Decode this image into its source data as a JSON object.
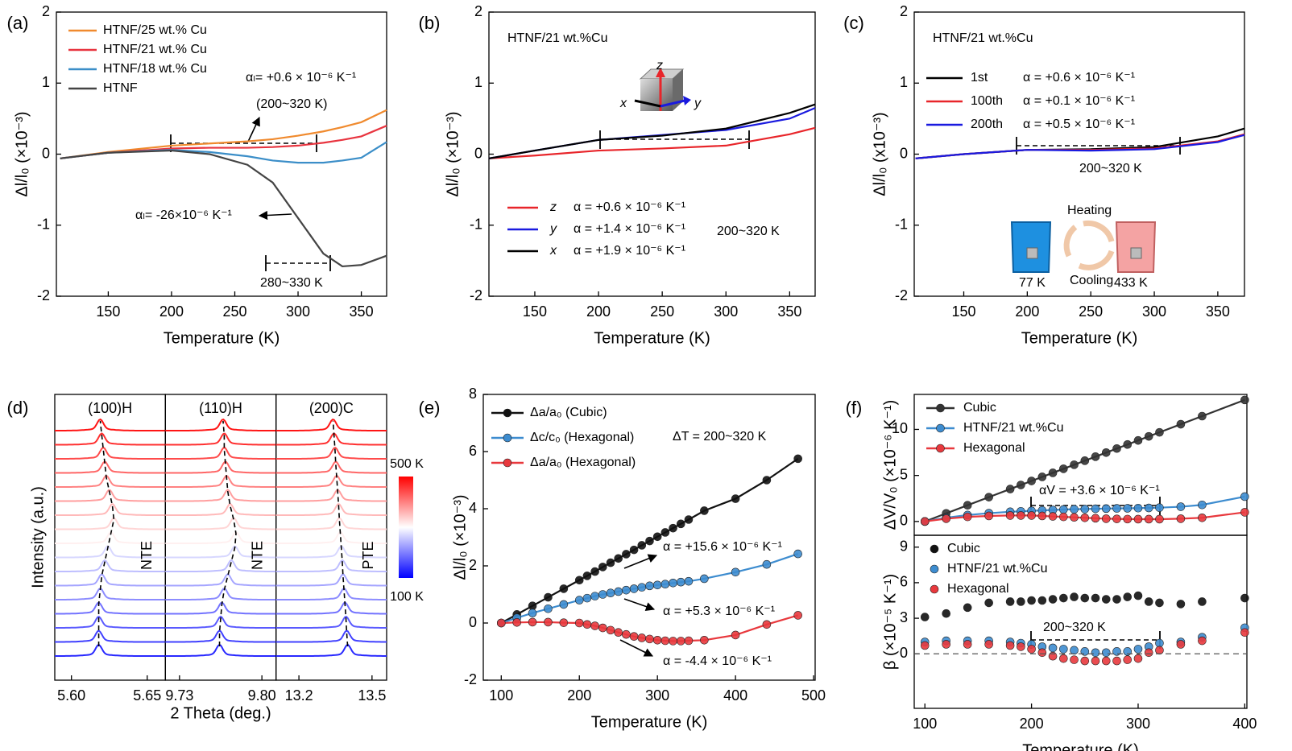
{
  "chart_data": [
    {
      "type": "line",
      "panel": "(a)",
      "xlabel": "Temperature (K)",
      "ylabel": "Δl/l₀ (×10⁻³)",
      "xlim": [
        109,
        370
      ],
      "ylim": [
        -2,
        2
      ],
      "xticks": [
        150,
        200,
        250,
        300,
        350
      ],
      "yticks": [
        -2,
        -1,
        0,
        1,
        2
      ],
      "x": [
        112,
        150,
        200,
        230,
        260,
        280,
        300,
        320,
        335,
        350,
        370
      ],
      "series": [
        {
          "name": "HTNF/25 wt.% Cu",
          "color": "#f08a2e",
          "values": [
            -0.06,
            0.03,
            0.12,
            0.15,
            0.18,
            0.21,
            0.26,
            0.32,
            0.38,
            0.45,
            0.62
          ]
        },
        {
          "name": "HTNF/21 wt.% Cu",
          "color": "#e8343f",
          "values": [
            -0.06,
            0.02,
            0.08,
            0.09,
            0.09,
            0.1,
            0.12,
            0.16,
            0.2,
            0.25,
            0.4
          ]
        },
        {
          "name": "HTNF/18 wt.% Cu",
          "color": "#3b8ec8",
          "values": [
            -0.06,
            0.02,
            0.06,
            0.03,
            -0.03,
            -0.09,
            -0.12,
            -0.12,
            -0.09,
            -0.05,
            0.17
          ]
        },
        {
          "name": "HTNF",
          "color": "#444444",
          "values": [
            -0.06,
            0.02,
            0.05,
            0.0,
            -0.15,
            -0.4,
            -0.9,
            -1.4,
            -1.58,
            -1.56,
            -1.43
          ]
        }
      ],
      "annotations": [
        "αₗ= +0.6 × 10⁻⁶ K⁻¹",
        "(200~320 K)",
        "αₗ= -26×10⁻⁶ K⁻¹",
        "280~330 K"
      ]
    },
    {
      "type": "line",
      "panel": "(b)",
      "subtitle": "HTNF/21 wt.%Cu",
      "xlabel": "Temperature (K)",
      "ylabel": "Δl/l₀ (×10⁻³)",
      "xlim": [
        114,
        370
      ],
      "ylim": [
        -2,
        2
      ],
      "xticks": [
        150,
        200,
        250,
        300,
        350
      ],
      "yticks": [
        -2,
        -1,
        0,
        1,
        2
      ],
      "x": [
        114,
        150,
        200,
        250,
        300,
        350,
        370
      ],
      "series": [
        {
          "name": "z",
          "alpha": "α = +0.6 × 10⁻⁶ K⁻¹",
          "color": "#e8252a",
          "values": [
            -0.06,
            -0.02,
            0.05,
            0.08,
            0.12,
            0.28,
            0.37
          ]
        },
        {
          "name": "y",
          "alpha": "α = +1.4 × 10⁻⁶ K⁻¹",
          "color": "#1a1adf",
          "values": [
            -0.06,
            0.05,
            0.2,
            0.27,
            0.34,
            0.5,
            0.65
          ]
        },
        {
          "name": "x",
          "alpha": "α = +1.9 × 10⁻⁶ K⁻¹",
          "color": "#000000",
          "values": [
            -0.06,
            0.05,
            0.2,
            0.26,
            0.36,
            0.58,
            0.7
          ]
        }
      ],
      "annotations": [
        "200~320 K"
      ],
      "cube_labels": [
        "z",
        "x",
        "y"
      ]
    },
    {
      "type": "line",
      "panel": "(c)",
      "subtitle": "HTNF/21 wt.%Cu",
      "xlabel": "Temperature (K)",
      "ylabel": "Δl/l₀ (x10⁻³)",
      "xlim": [
        111,
        371
      ],
      "ylim": [
        -2,
        2
      ],
      "xticks": [
        150,
        200,
        250,
        300,
        350
      ],
      "yticks": [
        -2,
        -1,
        0,
        1,
        2
      ],
      "x": [
        112,
        150,
        200,
        250,
        300,
        350,
        371
      ],
      "series": [
        {
          "name": "1st",
          "alpha": "α = +0.6 × 10⁻⁶ K⁻¹",
          "color": "#000000",
          "values": [
            -0.06,
            0.0,
            0.06,
            0.07,
            0.1,
            0.25,
            0.36
          ]
        },
        {
          "name": "100th",
          "alpha": "α = +0.1 × 10⁻⁶ K⁻¹",
          "color": "#e8252a",
          "values": [
            -0.06,
            0.0,
            0.06,
            0.06,
            0.08,
            0.18,
            0.28
          ]
        },
        {
          "name": "200th",
          "alpha": "α = +0.5 × 10⁻⁶ K⁻¹",
          "color": "#1a1adf",
          "values": [
            -0.06,
            0.0,
            0.06,
            0.05,
            0.07,
            0.17,
            0.27
          ]
        }
      ],
      "annotations": [
        "200~320 K",
        "Heating",
        "Cooling",
        "77 K",
        "433 K"
      ]
    },
    {
      "type": "spectra",
      "panel": "(d)",
      "xlabel": "2 Theta (deg.)",
      "ylabel": "Intensity (a.u.)",
      "colorbar_labels": [
        "500 K",
        "100 K"
      ],
      "panels": [
        {
          "label": "(100)H",
          "effect": "NTE",
          "xlim": [
            5.589,
            5.662
          ],
          "xticks": [
            {
              "value": 5.6,
              "label": "5.60"
            },
            5.65
          ],
          "peaks": [
            5.618,
            5.618,
            5.618,
            5.618,
            5.619,
            5.62,
            5.622,
            5.624,
            5.626,
            5.628,
            5.627,
            5.625,
            5.623,
            5.622,
            5.621,
            5.62,
            5.619
          ]
        },
        {
          "label": "(110)H",
          "effect": "NTE",
          "xlim": [
            9.718,
            9.812
          ],
          "xticks": [
            9.73,
            {
              "value": 9.8,
              "label": "9.80"
            }
          ],
          "peaks": [
            9.764,
            9.764,
            9.765,
            9.766,
            9.768,
            9.771,
            9.774,
            9.777,
            9.778,
            9.776,
            9.773,
            9.771,
            9.77,
            9.769,
            9.768,
            9.768,
            9.767
          ]
        },
        {
          "label": "(200)C",
          "effect": "PTE",
          "xlim": [
            13.106,
            13.56
          ],
          "xticks": [
            13.2,
            13.5
          ],
          "peaks": [
            13.4,
            13.396,
            13.393,
            13.389,
            13.385,
            13.381,
            13.378,
            13.374,
            13.37,
            13.366,
            13.363,
            13.359,
            13.355,
            13.351,
            13.348,
            13.344,
            13.34
          ]
        }
      ]
    },
    {
      "type": "line",
      "markers": true,
      "panel": "(e)",
      "xlabel": "Temperature (K)",
      "ylabel": "Δl/l₀ (×10⁻³)",
      "xlim": [
        77,
        502
      ],
      "ylim": [
        -2,
        8
      ],
      "xticks": [
        100,
        200,
        300,
        400,
        500
      ],
      "yticks": [
        -2,
        0,
        2,
        4,
        6,
        8
      ],
      "x": [
        100,
        120,
        140,
        160,
        180,
        200,
        210,
        220,
        230,
        240,
        250,
        260,
        270,
        280,
        290,
        300,
        310,
        320,
        330,
        340,
        360,
        400,
        440,
        480
      ],
      "series": [
        {
          "name": "Δa/a₀ (Cubic)",
          "color": "#111111",
          "values": [
            0,
            0.3,
            0.6,
            0.9,
            1.2,
            1.5,
            1.65,
            1.8,
            1.96,
            2.11,
            2.26,
            2.41,
            2.56,
            2.72,
            2.87,
            3.02,
            3.17,
            3.32,
            3.47,
            3.62,
            3.93,
            4.35,
            5.0,
            5.75
          ]
        },
        {
          "name": "Δc/c₀ (Hexagonal)",
          "color": "#3d8ccf",
          "values": [
            0,
            0.18,
            0.35,
            0.5,
            0.65,
            0.8,
            0.87,
            0.94,
            1.0,
            1.05,
            1.1,
            1.15,
            1.2,
            1.25,
            1.3,
            1.33,
            1.36,
            1.4,
            1.43,
            1.46,
            1.55,
            1.78,
            2.05,
            2.42
          ]
        },
        {
          "name": "Δa/a₀ (Hexagonal)",
          "color": "#e8383d",
          "values": [
            0,
            0.02,
            0.03,
            0.03,
            0.01,
            0,
            -0.05,
            -0.1,
            -0.17,
            -0.25,
            -0.33,
            -0.4,
            -0.47,
            -0.52,
            -0.56,
            -0.6,
            -0.62,
            -0.63,
            -0.63,
            -0.62,
            -0.6,
            -0.42,
            -0.05,
            0.27
          ]
        }
      ],
      "annotations": [
        "ΔT = 200~320 K",
        "α = +15.6 × 10⁻⁶ K⁻¹",
        "α =  +5.3 × 10⁻⁶ K⁻¹",
        "α = -4.4 × 10⁻⁶ K⁻¹"
      ]
    },
    {
      "type": "line",
      "markers": true,
      "panel": "(f)",
      "ylabel": "ΔV/V₀ (×10⁻⁶ K⁻¹)",
      "xlim": [
        90,
        402
      ],
      "ylim": [
        -1.5,
        13.8
      ],
      "yticks": [
        0,
        5,
        10
      ],
      "x": [
        100,
        120,
        140,
        160,
        180,
        190,
        200,
        210,
        220,
        230,
        240,
        250,
        260,
        270,
        280,
        290,
        300,
        310,
        320,
        340,
        360,
        400
      ],
      "series": [
        {
          "name": "Cubic",
          "color": "#333333",
          "values": [
            0,
            0.88,
            1.76,
            2.64,
            3.52,
            3.96,
            4.4,
            4.84,
            5.28,
            5.72,
            6.16,
            6.6,
            7.04,
            7.48,
            7.92,
            8.36,
            8.8,
            9.24,
            9.68,
            10.56,
            11.44,
            13.2
          ]
        },
        {
          "name": "HTNF/21 wt.%Cu",
          "color": "#3d8ccf",
          "values": [
            0,
            0.4,
            0.7,
            0.9,
            1.05,
            1.1,
            1.15,
            1.2,
            1.25,
            1.3,
            1.33,
            1.35,
            1.38,
            1.4,
            1.42,
            1.43,
            1.45,
            1.47,
            1.5,
            1.6,
            1.8,
            2.7
          ]
        },
        {
          "name": "Hexagonal",
          "color": "#e8383d",
          "values": [
            0,
            0.3,
            0.5,
            0.6,
            0.65,
            0.65,
            0.65,
            0.6,
            0.55,
            0.5,
            0.45,
            0.4,
            0.35,
            0.3,
            0.28,
            0.26,
            0.25,
            0.25,
            0.25,
            0.3,
            0.4,
            1.0
          ]
        }
      ],
      "annotations": [
        "αV = +3.6 × 10⁻⁶ K⁻¹"
      ]
    },
    {
      "type": "scatter",
      "xlabel": "Temperature (K)",
      "ylabel": "β (×10⁻⁵ K⁻¹)",
      "xlim": [
        90,
        402
      ],
      "ylim": [
        -4.6,
        10
      ],
      "xticks": [
        100,
        200,
        300,
        400
      ],
      "yticks": [
        0,
        3,
        6,
        9
      ],
      "x": [
        100,
        120,
        140,
        160,
        180,
        190,
        200,
        210,
        220,
        230,
        240,
        250,
        260,
        270,
        280,
        290,
        300,
        310,
        320,
        340,
        360,
        400
      ],
      "series": [
        {
          "name": "Cubic",
          "color": "#111111",
          "values": [
            3.1,
            3.4,
            3.9,
            4.3,
            4.4,
            4.4,
            4.5,
            4.5,
            4.6,
            4.7,
            4.8,
            4.7,
            4.7,
            4.6,
            4.6,
            4.8,
            4.9,
            4.4,
            4.3,
            4.2,
            4.4,
            4.7
          ]
        },
        {
          "name": "HTNF/21 wt.%Cu",
          "color": "#3d8ccf",
          "values": [
            1.0,
            1.1,
            1.1,
            1.1,
            1.0,
            0.9,
            0.8,
            0.6,
            0.5,
            0.4,
            0.3,
            0.2,
            0.1,
            0.1,
            0.2,
            0.2,
            0.4,
            0.6,
            0.9,
            1.0,
            1.4,
            2.2
          ]
        },
        {
          "name": "Hexagonal",
          "color": "#e8383d",
          "values": [
            0.7,
            0.8,
            0.8,
            0.8,
            0.7,
            0.6,
            0.4,
            0.1,
            -0.2,
            -0.4,
            -0.5,
            -0.6,
            -0.6,
            -0.6,
            -0.6,
            -0.5,
            -0.4,
            0.1,
            0.3,
            0.8,
            1.1,
            1.8
          ]
        }
      ],
      "annotations": [
        "200~320 K"
      ]
    }
  ]
}
